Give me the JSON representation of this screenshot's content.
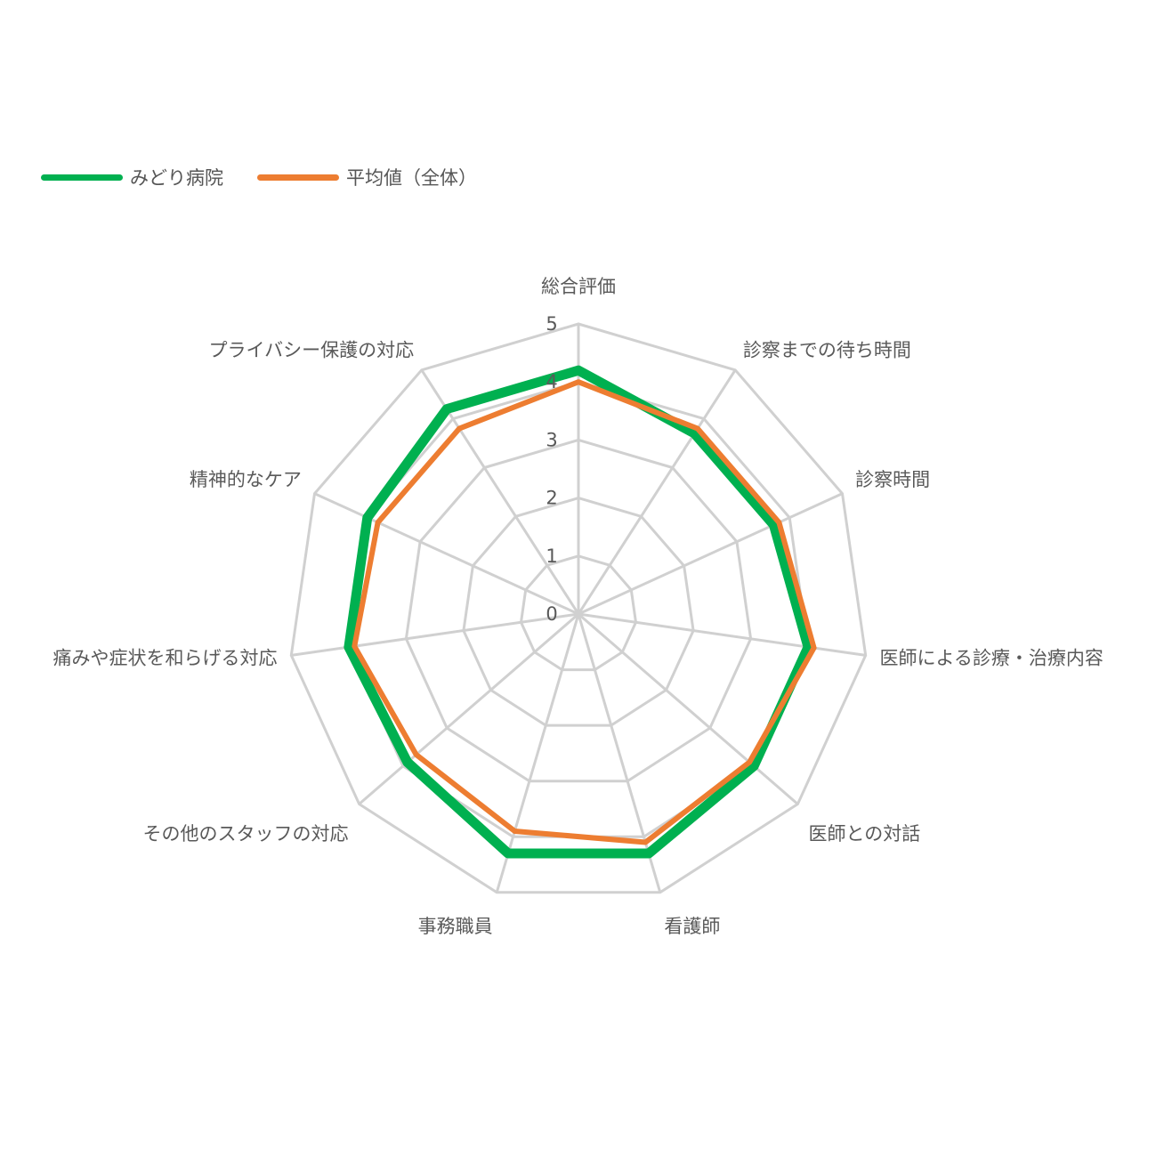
{
  "colors": {
    "grid": "#d0d0d0",
    "text": "#595959"
  },
  "chart_data": {
    "type": "radar",
    "title": "",
    "axes": [
      "総合評価",
      "診察までの待ち時間",
      "診察時間",
      "医師による診療・治療内容",
      "医師との対話",
      "看護師",
      "事務職員",
      "その他のスタッフの対応",
      "痛みや症状を和らげる対応",
      "精神的なケア",
      "プライバシー保護の対応"
    ],
    "rmin": 0,
    "rmax": 5,
    "ticks": [
      "0",
      "1",
      "2",
      "3",
      "4",
      "5"
    ],
    "grid": true,
    "legend_position": "top-left",
    "series": [
      {
        "name": "みどり病院",
        "color": "#00b050",
        "values": [
          4.2,
          3.7,
          3.7,
          4.0,
          4.0,
          4.3,
          4.3,
          3.9,
          4.0,
          4.0,
          4.2
        ]
      },
      {
        "name": "平均値（全体）",
        "color": "#ed7d31",
        "values": [
          4.0,
          3.8,
          3.8,
          4.1,
          3.9,
          4.1,
          3.9,
          3.7,
          3.9,
          3.8,
          3.8
        ]
      }
    ]
  }
}
